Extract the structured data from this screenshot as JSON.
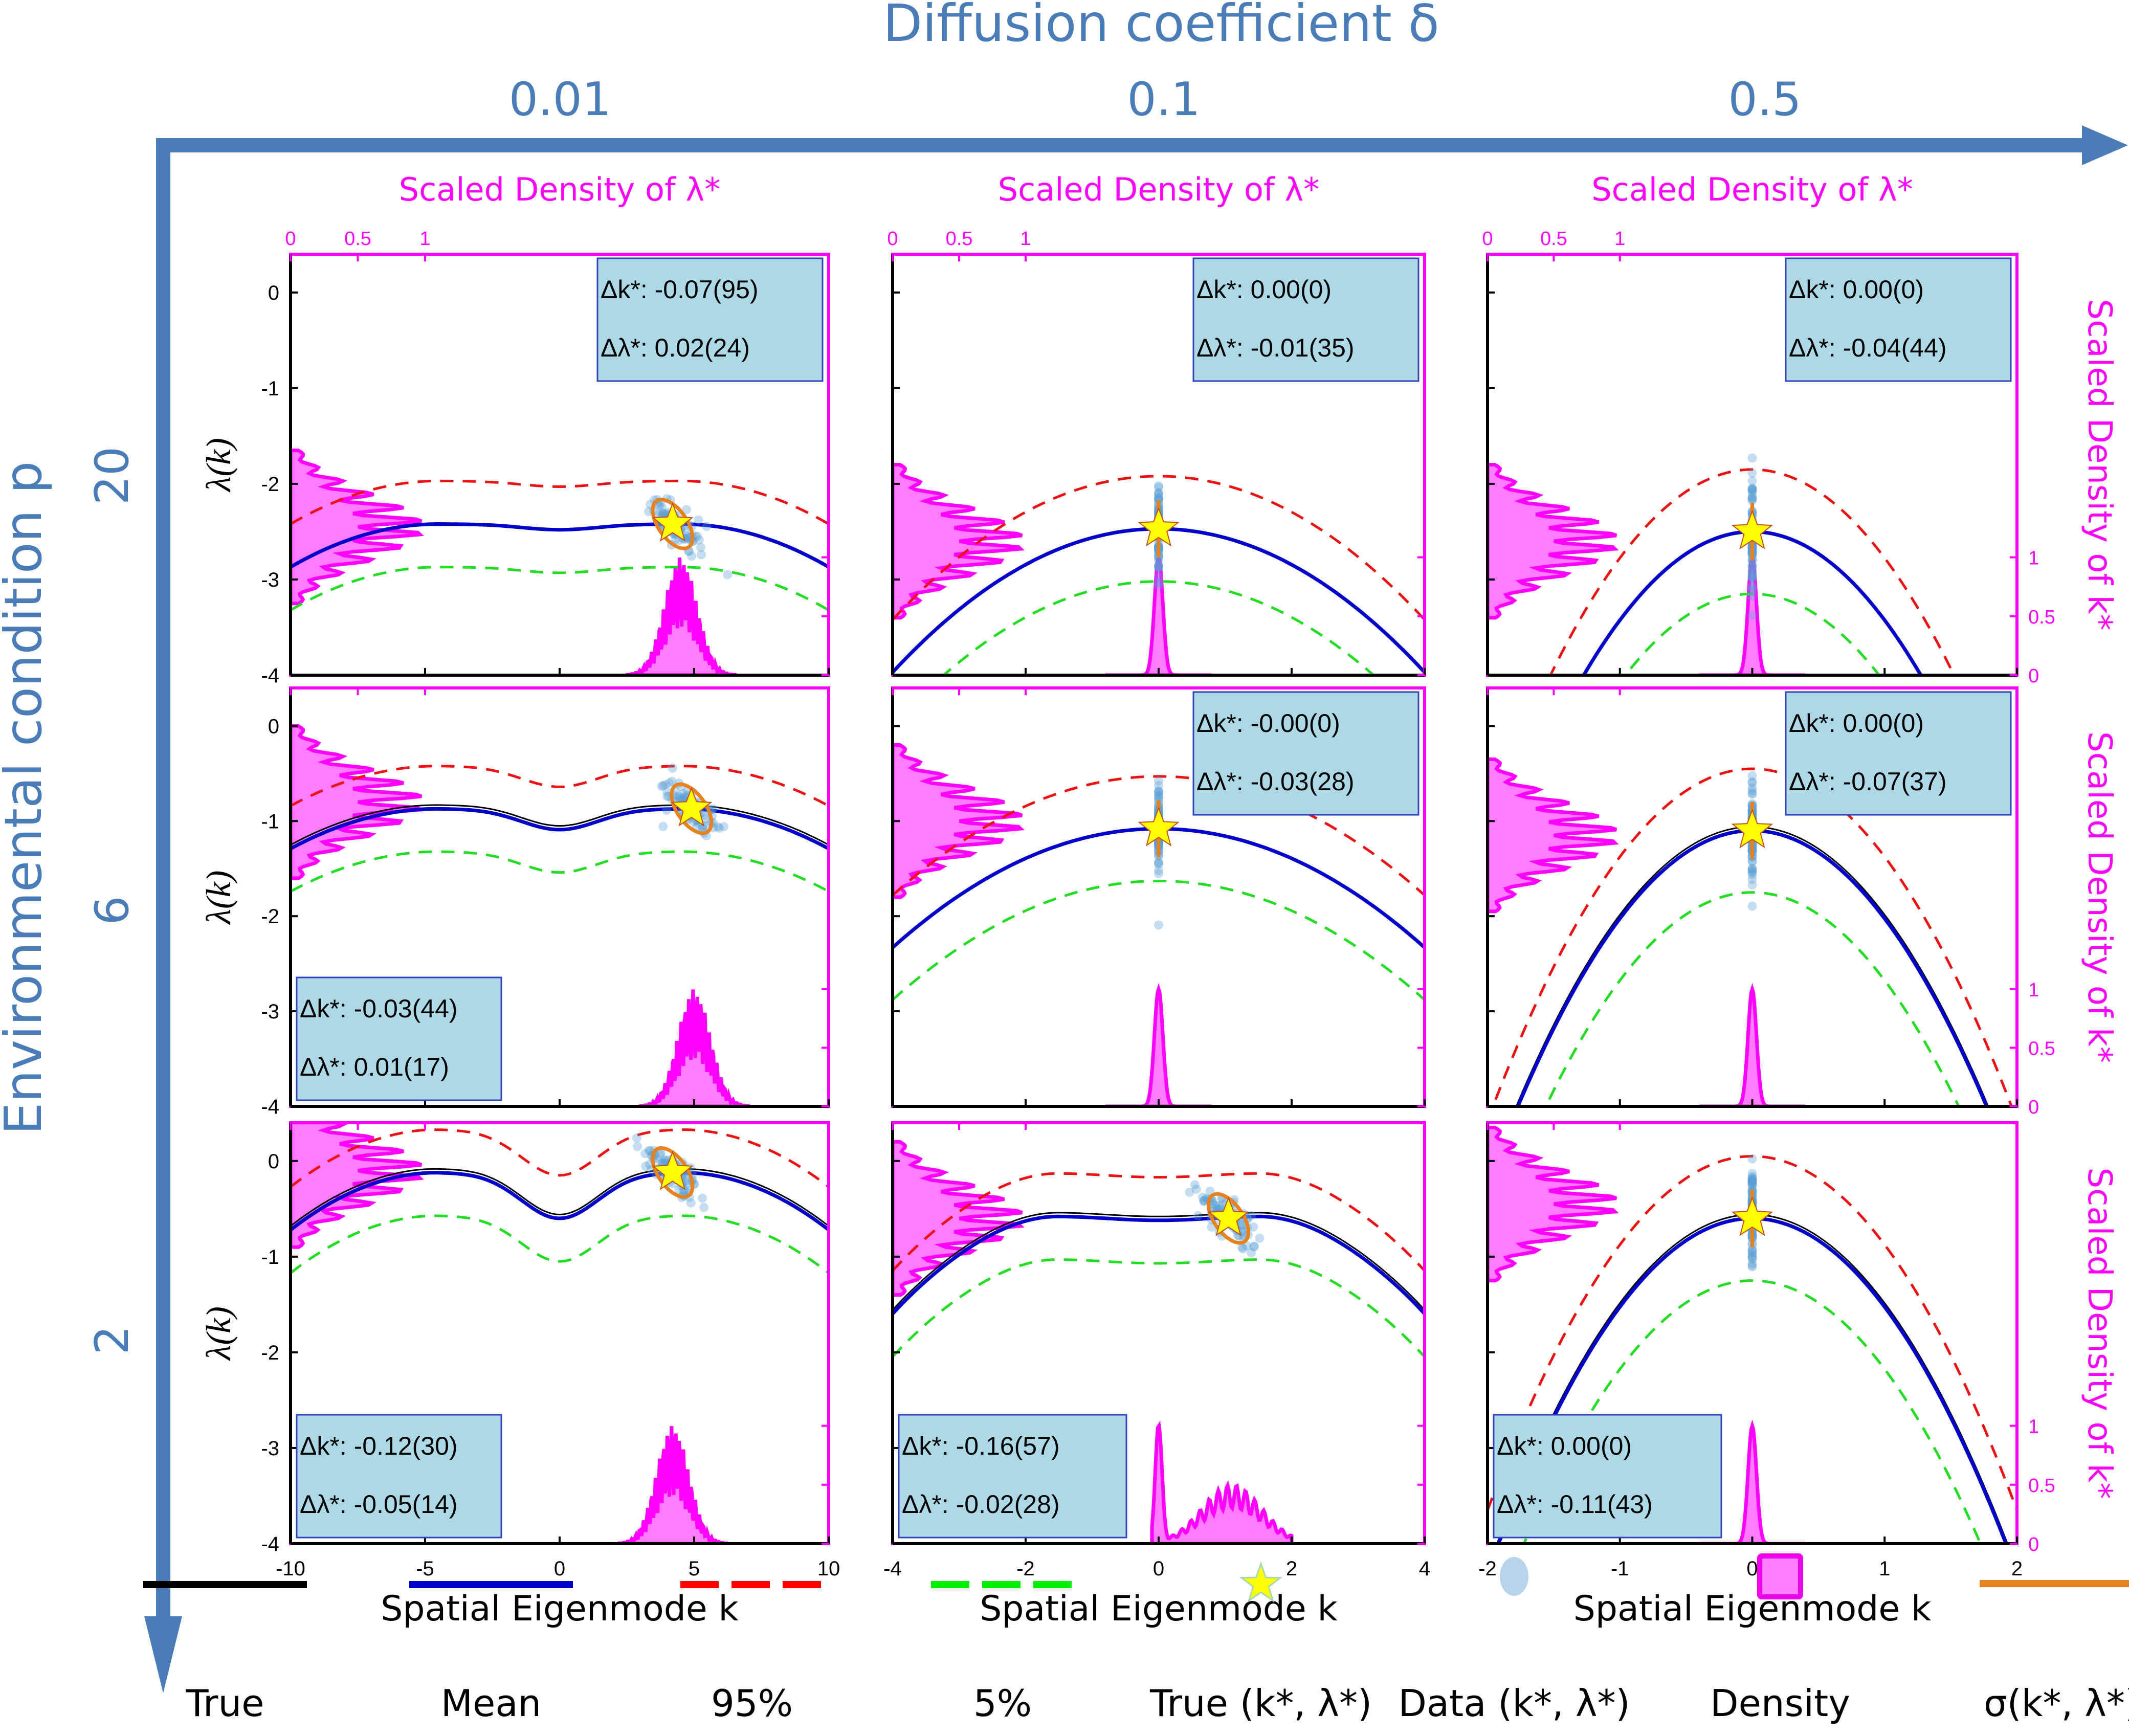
{
  "figure": {
    "column_axis": {
      "title": "Diffusion coefficient δ",
      "values": [
        "0.01",
        "0.1",
        "0.5"
      ]
    },
    "row_axis": {
      "title": "Environmental condition p",
      "values": [
        "20",
        "6",
        "2"
      ]
    },
    "top_density_label": "Scaled Density of λ*",
    "right_density_label": "Scaled Density of k*",
    "density_ticks": [
      "0",
      "0.5",
      "1"
    ],
    "y_label": "λ(k)",
    "x_label": "Spatial Eigenmode k",
    "colors": {
      "axis_arrow": "#4a7db8",
      "density": "#ff00ff",
      "density_fill": "#ff7cff",
      "true": "#000000",
      "mean": "#0000cc",
      "p95": "#ee1111",
      "p5": "#22dd22",
      "data": "#5a9fd4",
      "sigma": "#e8821e",
      "star": "#ffff00",
      "annot_bg": "#add8e6",
      "annot_border": "#3344bb"
    }
  },
  "legend": [
    {
      "key": "true",
      "label": "True"
    },
    {
      "key": "mean",
      "label": "Mean"
    },
    {
      "key": "p95",
      "label": "95%"
    },
    {
      "key": "p5",
      "label": "5%"
    },
    {
      "key": "star",
      "label": "True (k*, λ*)"
    },
    {
      "key": "data",
      "label": "Data (k*, λ*)"
    },
    {
      "key": "density",
      "label": "Density"
    },
    {
      "key": "sigma",
      "label": "σ(k*, λ*)"
    }
  ],
  "chart_data": [
    {
      "type": "line",
      "row": 0,
      "col": 0,
      "p": "20",
      "delta": "0.01",
      "xlim": [
        -10,
        10
      ],
      "ylim": [
        -4,
        0.4
      ],
      "xticks": [
        -10,
        -5,
        0,
        5,
        10
      ],
      "yticks": [
        0,
        -1,
        -2,
        -3,
        -4
      ],
      "annotation": {
        "dk": "Δk*: -0.07(95)",
        "dl": "Δλ*: 0.02(24)",
        "pos": "top-right"
      },
      "star": [
        4.2,
        -2.42
      ],
      "shape": "wavy",
      "mean_dx": 0,
      "k_density_peak": 4.5,
      "k_density_kind": "broad",
      "lambda_density_peak": -2.45
    },
    {
      "type": "line",
      "row": 0,
      "col": 1,
      "p": "20",
      "delta": "0.1",
      "xlim": [
        -4,
        4
      ],
      "ylim": [
        -4,
        0.4
      ],
      "xticks": [
        -4,
        -2,
        0,
        2,
        4
      ],
      "yticks": [
        0,
        -1,
        -2,
        -3,
        -4
      ],
      "annotation": {
        "dk": "Δk*: 0.00(0)",
        "dl": "Δλ*: -0.01(35)",
        "pos": "top-right"
      },
      "star": [
        0,
        -2.47
      ],
      "shape": "parabola",
      "k_density_peak": 0,
      "k_density_kind": "narrow",
      "lambda_density_peak": -2.6
    },
    {
      "type": "line",
      "row": 0,
      "col": 2,
      "p": "20",
      "delta": "0.5",
      "xlim": [
        -2,
        2
      ],
      "ylim": [
        -4,
        0.4
      ],
      "xticks": [
        -2,
        -1,
        0,
        1,
        2
      ],
      "yticks": [
        0,
        -1,
        -2,
        -3,
        -4
      ],
      "annotation": {
        "dk": "Δk*: 0.00(0)",
        "dl": "Δλ*: -0.04(44)",
        "pos": "top-right"
      },
      "star": [
        0,
        -2.5
      ],
      "shape": "parabola",
      "k_density_peak": 0,
      "k_density_kind": "narrow",
      "lambda_density_peak": -2.6
    },
    {
      "type": "line",
      "row": 1,
      "col": 0,
      "p": "6",
      "delta": "0.01",
      "xlim": [
        -10,
        10
      ],
      "ylim": [
        -4,
        0.4
      ],
      "xticks": [
        -10,
        -5,
        0,
        5,
        10
      ],
      "yticks": [
        0,
        -1,
        -2,
        -3,
        -4
      ],
      "annotation": {
        "dk": "Δk*: -0.03(44)",
        "dl": "Δλ*: 0.01(17)",
        "pos": "bottom-left"
      },
      "star": [
        4.9,
        -0.87
      ],
      "shape": "wavy",
      "k_density_peak": 5.0,
      "k_density_kind": "broad",
      "lambda_density_peak": -0.8
    },
    {
      "type": "line",
      "row": 1,
      "col": 1,
      "p": "6",
      "delta": "0.1",
      "xlim": [
        -4,
        4
      ],
      "ylim": [
        -4,
        0.4
      ],
      "xticks": [
        -4,
        -2,
        0,
        2,
        4
      ],
      "yticks": [
        0,
        -1,
        -2,
        -3,
        -4
      ],
      "annotation": {
        "dk": "Δk*: -0.00(0)",
        "dl": "Δλ*: -0.03(28)",
        "pos": "top-right"
      },
      "star": [
        0,
        -1.08
      ],
      "shape": "parabola",
      "k_density_peak": 0,
      "k_density_kind": "narrow",
      "lambda_density_peak": -1.0
    },
    {
      "type": "line",
      "row": 1,
      "col": 2,
      "p": "6",
      "delta": "0.5",
      "xlim": [
        -2,
        2
      ],
      "ylim": [
        -4,
        0.4
      ],
      "xticks": [
        -2,
        -1,
        0,
        1,
        2
      ],
      "yticks": [
        0,
        -1,
        -2,
        -3,
        -4
      ],
      "annotation": {
        "dk": "Δk*: 0.00(0)",
        "dl": "Δλ*: -0.07(37)",
        "pos": "top-right"
      },
      "star": [
        0,
        -1.1
      ],
      "shape": "parabola",
      "k_density_peak": 0,
      "k_density_kind": "narrow",
      "lambda_density_peak": -1.15
    },
    {
      "type": "line",
      "row": 2,
      "col": 0,
      "p": "2",
      "delta": "0.01",
      "xlim": [
        -10,
        10
      ],
      "ylim": [
        -4,
        0.4
      ],
      "xticks": [
        -10,
        -5,
        0,
        5,
        10
      ],
      "yticks": [
        0,
        -1,
        -2,
        -3,
        -4
      ],
      "annotation": {
        "dk": "Δk*: -0.12(30)",
        "dl": "Δλ*: -0.05(14)",
        "pos": "bottom-left"
      },
      "star": [
        4.2,
        -0.12
      ],
      "shape": "wavy",
      "k_density_peak": 4.2,
      "k_density_kind": "broad",
      "lambda_density_peak": -0.1
    },
    {
      "type": "line",
      "row": 2,
      "col": 1,
      "p": "2",
      "delta": "0.1",
      "xlim": [
        -4,
        4
      ],
      "ylim": [
        -4,
        0.4
      ],
      "xticks": [
        -4,
        -2,
        0,
        2,
        4
      ],
      "yticks": [
        0,
        -1,
        -2,
        -3,
        -4
      ],
      "annotation": {
        "dk": "Δk*: -0.16(57)",
        "dl": "Δλ*: -0.02(28)",
        "pos": "bottom-left"
      },
      "star": [
        1.05,
        -0.6
      ],
      "shape": "flat",
      "k_density_peak": 0,
      "k_density_kind": "bimodal",
      "lambda_density_peak": -0.6
    },
    {
      "type": "line",
      "row": 2,
      "col": 2,
      "p": "2",
      "delta": "0.5",
      "xlim": [
        -2,
        2
      ],
      "ylim": [
        -4,
        0.4
      ],
      "xticks": [
        -2,
        -1,
        0,
        1,
        2
      ],
      "yticks": [
        0,
        -1,
        -2,
        -3,
        -4
      ],
      "annotation": {
        "dk": "Δk*: 0.00(0)",
        "dl": "Δλ*: -0.11(43)",
        "pos": "bottom-left"
      },
      "star": [
        0,
        -0.6
      ],
      "shape": "parabola",
      "k_density_peak": 0,
      "k_density_kind": "narrow",
      "lambda_density_peak": -0.45
    }
  ]
}
